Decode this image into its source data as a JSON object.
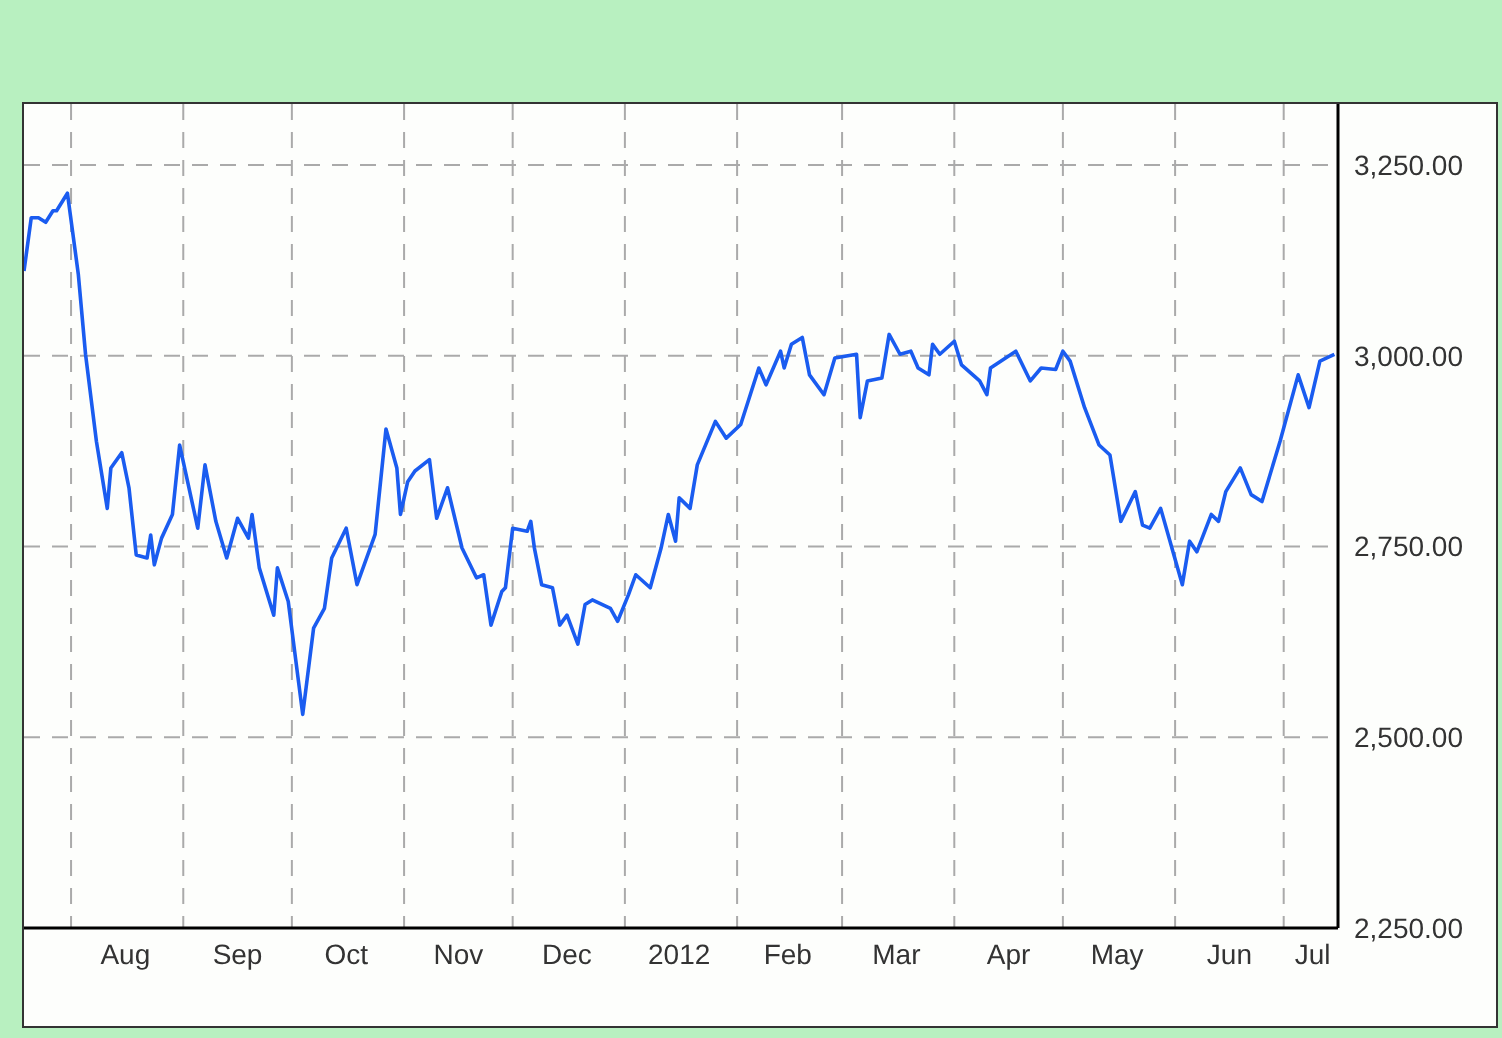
{
  "chart_data": {
    "type": "line",
    "grid": true,
    "line_style": "solid",
    "marker": "none",
    "xlim": [
      "2011-07-19",
      "2012-07-16"
    ],
    "xticks": [
      {
        "value": "2011-08-01",
        "label": null
      },
      {
        "value": "2011-08-16",
        "label": "Aug"
      },
      {
        "value": "2011-09-01",
        "label": null
      },
      {
        "value": "2011-09-16",
        "label": "Sep"
      },
      {
        "value": "2011-10-01",
        "label": null
      },
      {
        "value": "2011-10-16",
        "label": "Oct"
      },
      {
        "value": "2011-11-01",
        "label": null
      },
      {
        "value": "2011-11-16",
        "label": "Nov"
      },
      {
        "value": "2011-12-01",
        "label": null
      },
      {
        "value": "2011-12-16",
        "label": "Dec"
      },
      {
        "value": "2012-01-01",
        "label": null
      },
      {
        "value": "2012-01-16",
        "label": "2012"
      },
      {
        "value": "2012-02-01",
        "label": null
      },
      {
        "value": "2012-02-15",
        "label": "Feb"
      },
      {
        "value": "2012-03-01",
        "label": null
      },
      {
        "value": "2012-03-16",
        "label": "Mar"
      },
      {
        "value": "2012-04-01",
        "label": null
      },
      {
        "value": "2012-04-16",
        "label": "Apr"
      },
      {
        "value": "2012-05-01",
        "label": null
      },
      {
        "value": "2012-05-16",
        "label": "May"
      },
      {
        "value": "2012-06-01",
        "label": null
      },
      {
        "value": "2012-06-16",
        "label": "Jun"
      },
      {
        "value": "2012-07-01",
        "label": null
      },
      {
        "value": "2012-07-09",
        "label": "Jul"
      }
    ],
    "ylim": [
      2250,
      3330
    ],
    "yticks": [
      {
        "value": 2250,
        "label": "2,250.00"
      },
      {
        "value": 2500,
        "label": "2,500.00"
      },
      {
        "value": 2750,
        "label": "2,750.00"
      },
      {
        "value": 3000,
        "label": "3,000.00"
      },
      {
        "value": 3250,
        "label": "3,250.00"
      }
    ],
    "x": [
      "2011-07-19",
      "2011-07-21",
      "2011-07-23",
      "2011-07-25",
      "2011-07-27",
      "2011-07-28",
      "2011-07-31",
      "2011-08-03",
      "2011-08-05",
      "2011-08-08",
      "2011-08-11",
      "2011-08-12",
      "2011-08-15",
      "2011-08-17",
      "2011-08-19",
      "2011-08-22",
      "2011-08-23",
      "2011-08-24",
      "2011-08-26",
      "2011-08-29",
      "2011-08-31",
      "2011-09-05",
      "2011-09-07",
      "2011-09-10",
      "2011-09-13",
      "2011-09-16",
      "2011-09-19",
      "2011-09-20",
      "2011-09-22",
      "2011-09-26",
      "2011-09-27",
      "2011-09-30",
      "2011-10-04",
      "2011-10-07",
      "2011-10-10",
      "2011-10-12",
      "2011-10-16",
      "2011-10-19",
      "2011-10-24",
      "2011-10-27",
      "2011-10-30",
      "2011-10-31",
      "2011-11-02",
      "2011-11-04",
      "2011-11-08",
      "2011-11-10",
      "2011-11-13",
      "2011-11-17",
      "2011-11-21",
      "2011-11-23",
      "2011-11-25",
      "2011-11-28",
      "2011-11-29",
      "2011-12-01",
      "2011-12-05",
      "2011-12-06",
      "2011-12-07",
      "2011-12-09",
      "2011-12-12",
      "2011-12-14",
      "2011-12-16",
      "2011-12-19",
      "2011-12-21",
      "2011-12-23",
      "2011-12-28",
      "2011-12-30",
      "2012-01-02",
      "2012-01-04",
      "2012-01-08",
      "2012-01-11",
      "2012-01-13",
      "2012-01-15",
      "2012-01-16",
      "2012-01-19",
      "2012-01-21",
      "2012-01-26",
      "2012-01-29",
      "2012-02-02",
      "2012-02-07",
      "2012-02-09",
      "2012-02-13",
      "2012-02-14",
      "2012-02-16",
      "2012-02-19",
      "2012-02-21",
      "2012-02-25",
      "2012-02-28",
      "2012-03-05",
      "2012-03-06",
      "2012-03-08",
      "2012-03-12",
      "2012-03-14",
      "2012-03-17",
      "2012-03-20",
      "2012-03-22",
      "2012-03-25",
      "2012-03-26",
      "2012-03-28",
      "2012-04-01",
      "2012-04-03",
      "2012-04-08",
      "2012-04-10",
      "2012-04-11",
      "2012-04-18",
      "2012-04-22",
      "2012-04-25",
      "2012-04-29",
      "2012-05-01",
      "2012-05-03",
      "2012-05-07",
      "2012-05-11",
      "2012-05-14",
      "2012-05-17",
      "2012-05-21",
      "2012-05-23",
      "2012-05-25",
      "2012-05-28",
      "2012-06-03",
      "2012-06-05",
      "2012-06-07",
      "2012-06-11",
      "2012-06-13",
      "2012-06-15",
      "2012-06-19",
      "2012-06-22",
      "2012-06-25",
      "2012-06-30",
      "2012-07-05",
      "2012-07-08",
      "2012-07-11",
      "2012-07-15"
    ],
    "series": [
      {
        "color": "#1a5cf0",
        "values": [
          3111,
          3181,
          3181,
          3175,
          3190,
          3190,
          3213,
          3107,
          3002,
          2888,
          2800,
          2853,
          2873,
          2827,
          2739,
          2735,
          2765,
          2726,
          2761,
          2792,
          2883,
          2774,
          2857,
          2783,
          2735,
          2787,
          2761,
          2792,
          2722,
          2660,
          2722,
          2678,
          2530,
          2643,
          2669,
          2735,
          2774,
          2700,
          2766,
          2904,
          2853,
          2792,
          2835,
          2849,
          2864,
          2787,
          2827,
          2748,
          2709,
          2713,
          2647,
          2691,
          2696,
          2774,
          2770,
          2783,
          2748,
          2700,
          2696,
          2647,
          2660,
          2622,
          2674,
          2680,
          2669,
          2652,
          2687,
          2713,
          2696,
          2748,
          2792,
          2757,
          2814,
          2800,
          2857,
          2914,
          2892,
          2910,
          2984,
          2962,
          3006,
          2984,
          3015,
          3024,
          2975,
          2949,
          2997,
          3002,
          2919,
          2967,
          2971,
          3028,
          3002,
          3006,
          2984,
          2975,
          3015,
          3002,
          3019,
          2988,
          2967,
          2949,
          2984,
          3006,
          2967,
          2984,
          2982,
          3006,
          2993,
          2932,
          2883,
          2870,
          2783,
          2822,
          2778,
          2774,
          2800,
          2700,
          2757,
          2743,
          2792,
          2783,
          2822,
          2853,
          2818,
          2809,
          2888,
          2975,
          2932,
          2993,
          3002
        ]
      }
    ]
  }
}
